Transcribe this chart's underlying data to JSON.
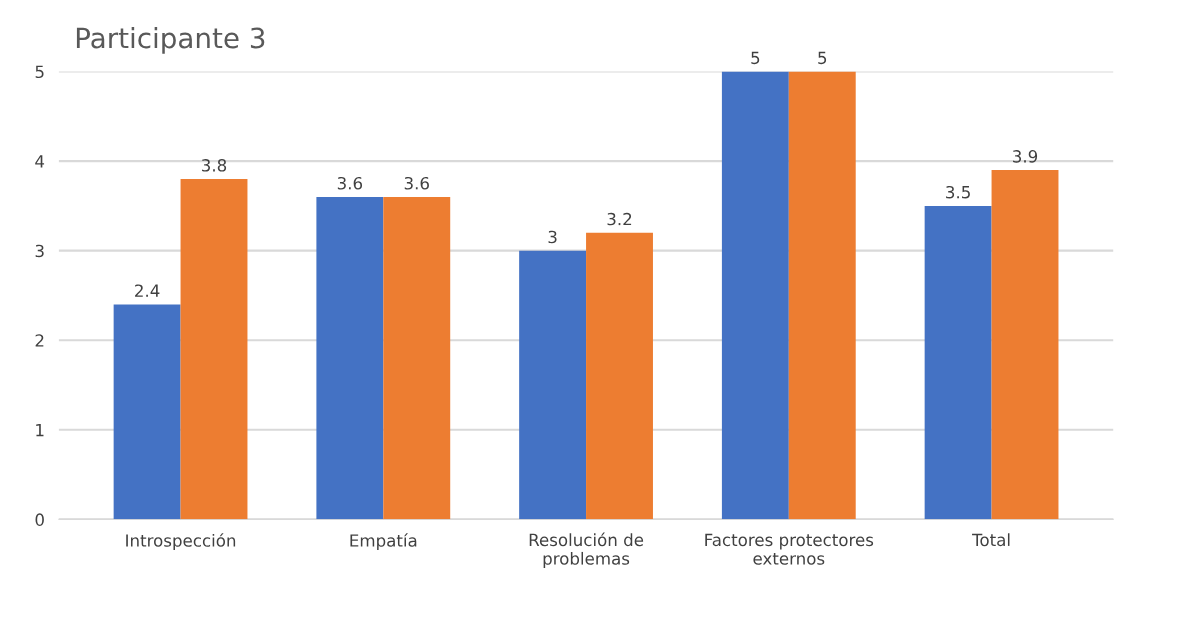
{
  "chart_data": {
    "type": "bar",
    "title": "Participante 3",
    "categories": [
      "Introspección",
      "Empatía",
      "Resolución de\nproblemas",
      "Factores protectores\nexternos",
      "Total"
    ],
    "series": [
      {
        "color": "#4472c4",
        "values": [
          2.4,
          3.6,
          3,
          5,
          3.5
        ]
      },
      {
        "color": "#ed7d31",
        "values": [
          3.8,
          3.6,
          3.2,
          5,
          3.9
        ]
      }
    ],
    "ylim": [
      0,
      5
    ],
    "yticks": [
      0,
      1,
      2,
      3,
      4,
      5
    ],
    "grid": "y",
    "data_labels": true,
    "legend": false
  }
}
